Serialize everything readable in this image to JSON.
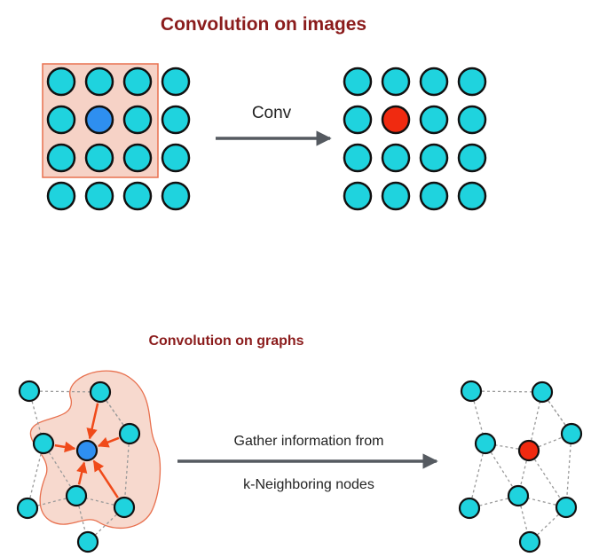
{
  "images_section": {
    "title": "Convolution on images",
    "arrow_label": "Conv"
  },
  "graphs_section": {
    "title": "Convolution on graphs",
    "arrow_label_line1": "Gather information from",
    "arrow_label_line2": "k-Neighboring nodes"
  },
  "colors": {
    "node": "#1fd3de",
    "center_node": "#2e8ff0",
    "output_node": "#f02a10",
    "title": "#8b1c1c",
    "kernel_fill": "#f6d2c6",
    "kernel_stroke": "#e8704e",
    "arrow": "#555a60",
    "edge": "#9a9a9a",
    "neighbor_arrow": "#f04a1a"
  }
}
